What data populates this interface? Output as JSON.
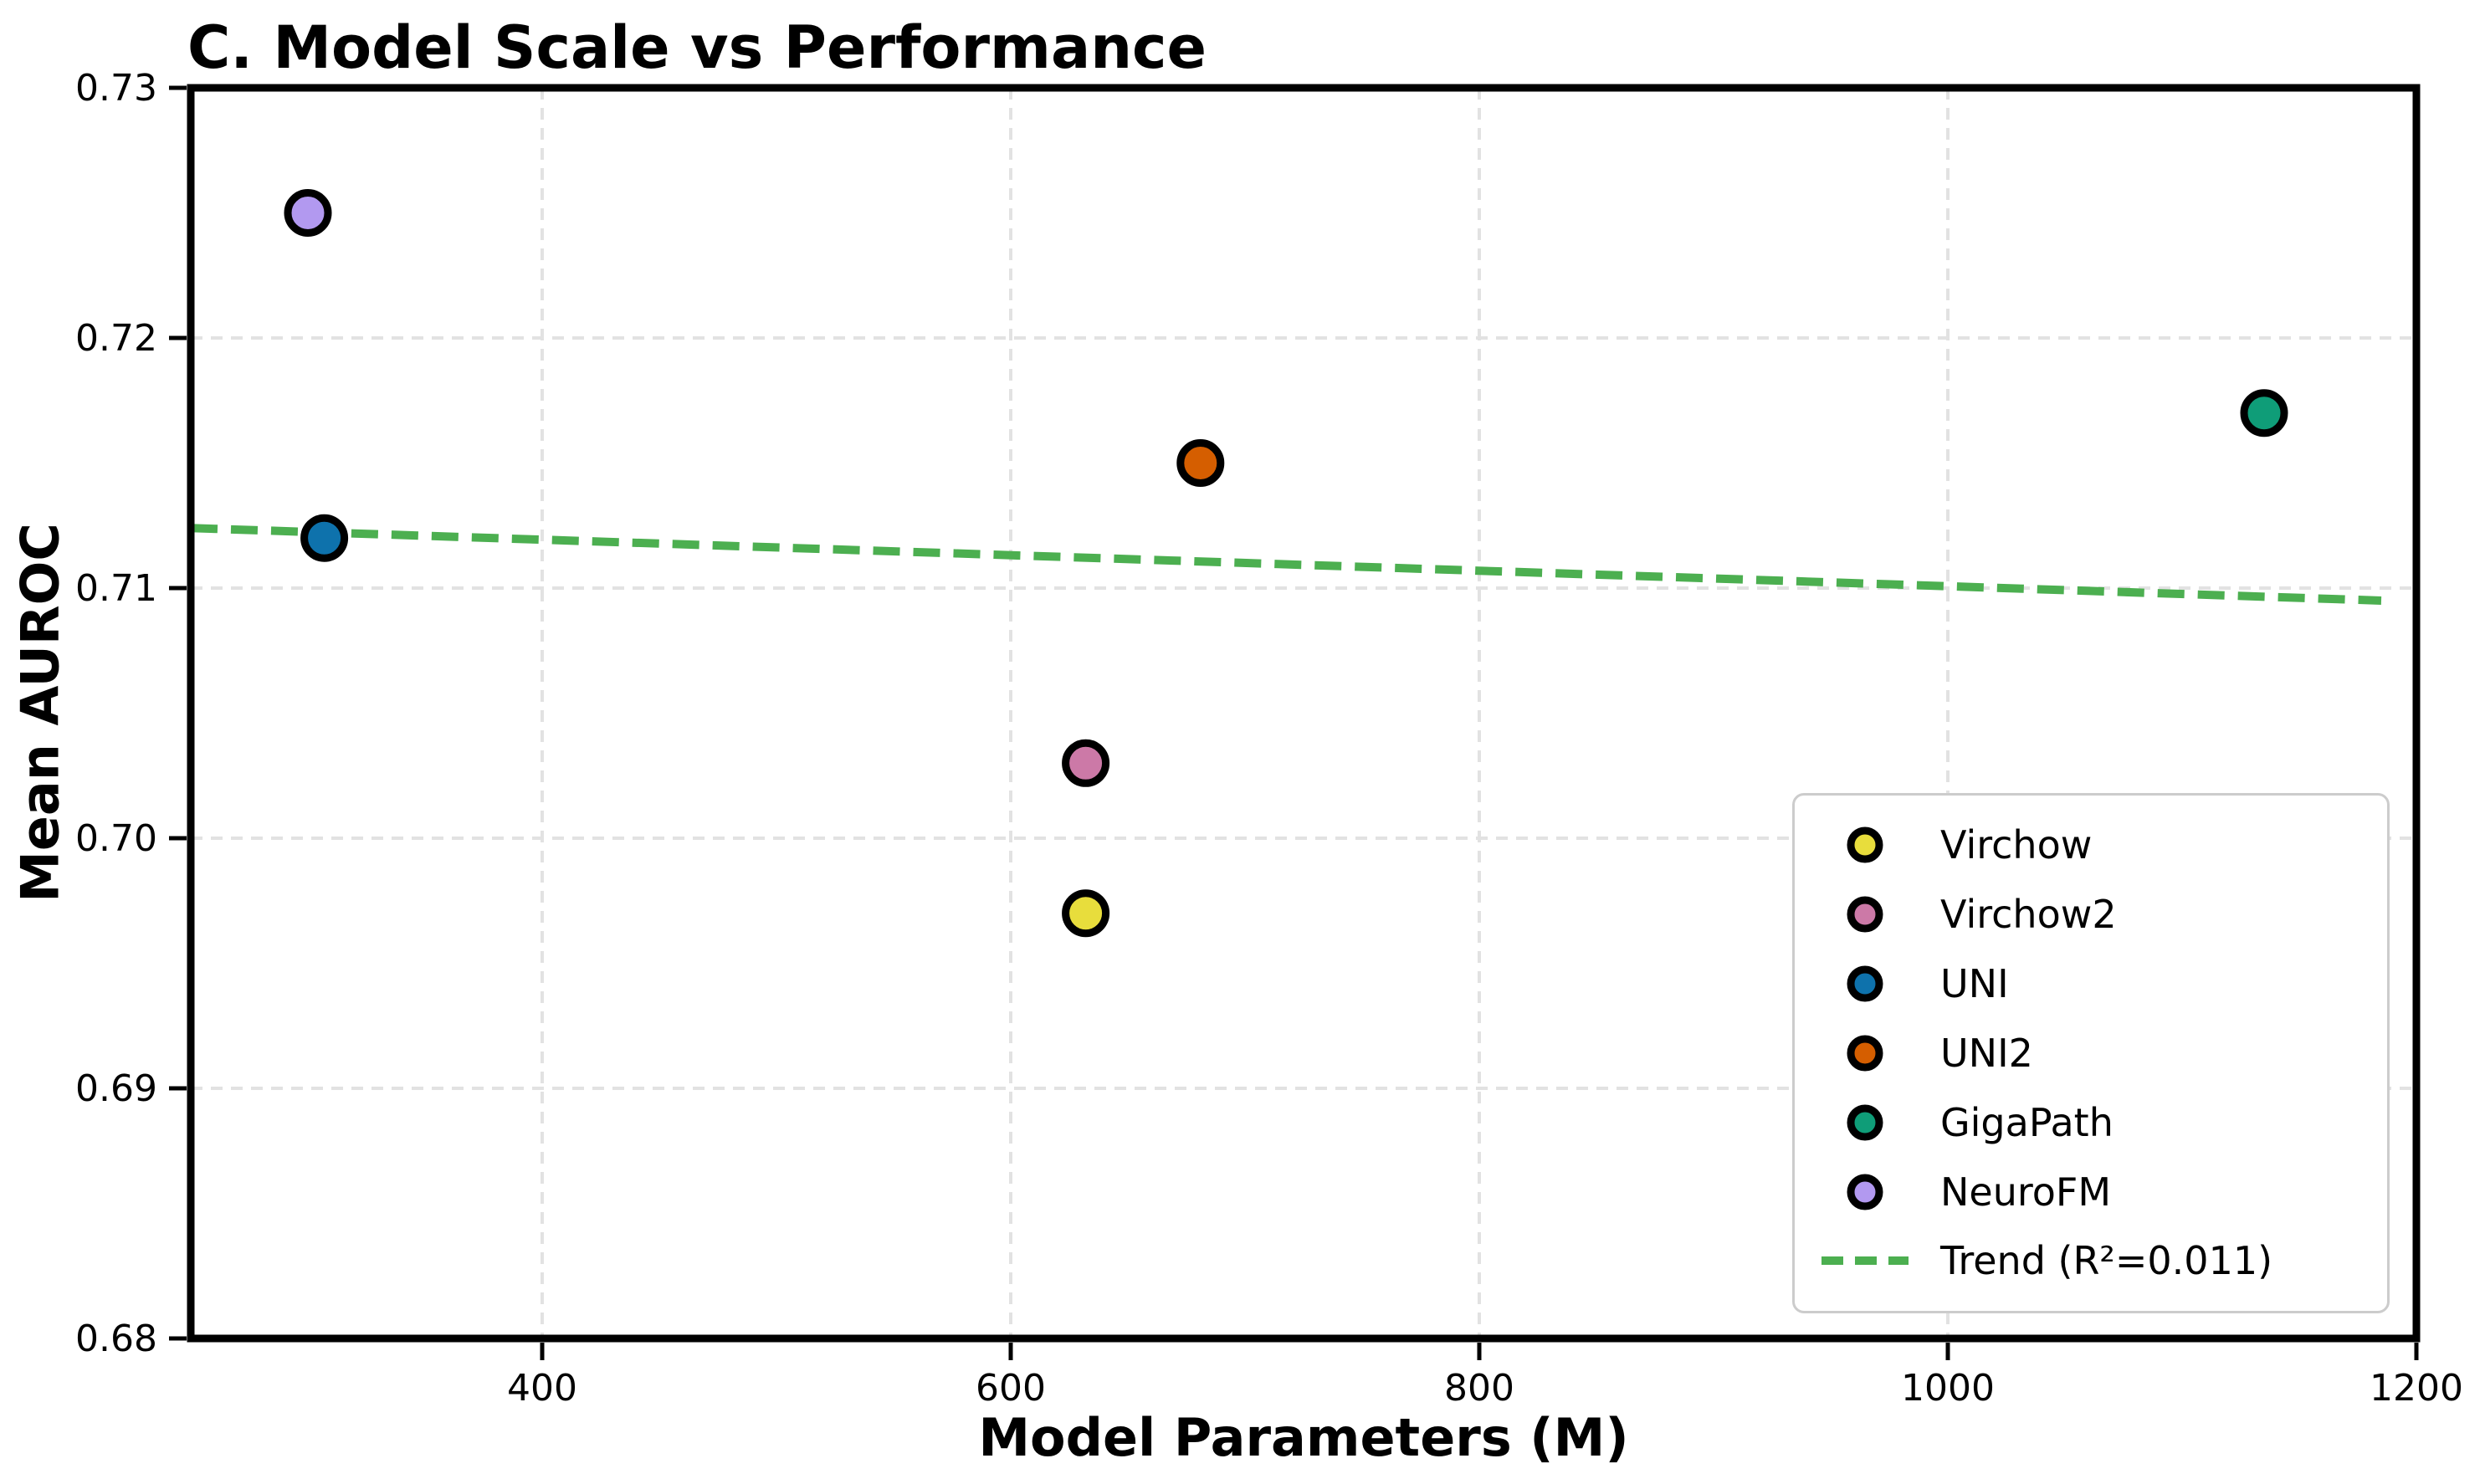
{
  "figure": {
    "title": "C. Model Scale vs Performance"
  },
  "chart_data": {
    "type": "scatter",
    "title": "C. Model Scale vs Performance",
    "xlabel": "Model Parameters (M)",
    "ylabel": "Mean AUROC",
    "xlim": [
      250,
      1200
    ],
    "ylim": [
      0.68,
      0.73
    ],
    "grid": true,
    "legend_position": "lower right",
    "x_ticks": [
      {
        "value": 400,
        "label": "400"
      },
      {
        "value": 600,
        "label": "600"
      },
      {
        "value": 800,
        "label": "800"
      },
      {
        "value": 1000,
        "label": "1000"
      },
      {
        "value": 1200,
        "label": "1200"
      }
    ],
    "y_ticks": [
      {
        "value": 0.68,
        "label": "0.68"
      },
      {
        "value": 0.69,
        "label": "0.69"
      },
      {
        "value": 0.7,
        "label": "0.70"
      },
      {
        "value": 0.71,
        "label": "0.71"
      },
      {
        "value": 0.72,
        "label": "0.72"
      },
      {
        "value": 0.73,
        "label": "0.73"
      }
    ],
    "series": [
      {
        "name": "Virchow",
        "x": 632,
        "y": 0.697,
        "color": "#E8DD3C"
      },
      {
        "name": "Virchow2",
        "x": 632,
        "y": 0.703,
        "color": "#CC79A7"
      },
      {
        "name": "UNI",
        "x": 307,
        "y": 0.712,
        "color": "#0E72AC"
      },
      {
        "name": "UNI2",
        "x": 681,
        "y": 0.715,
        "color": "#D55E00"
      },
      {
        "name": "GigaPath",
        "x": 1135,
        "y": 0.717,
        "color": "#0F9D78"
      },
      {
        "name": "NeuroFM",
        "x": 300,
        "y": 0.725,
        "color": "#B299F0"
      }
    ],
    "trend": {
      "label": "Trend (R²=0.011)",
      "r_squared": 0.011,
      "style": "dashed",
      "color": "#4CAF50",
      "x": [
        250,
        1185
      ],
      "y": [
        0.7124,
        0.7095
      ]
    }
  }
}
